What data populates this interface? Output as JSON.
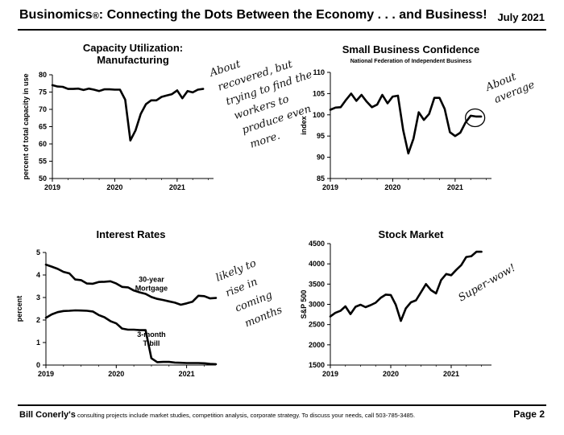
{
  "header": {
    "brand": "Businomics",
    "reg": "®",
    "subtitle": ": Connecting the Dots Between the Economy . . . and Business!",
    "date": "July 2021"
  },
  "footer": {
    "name": "Bill Conerly's",
    "text": " consulting projects include market studies, competition analysis, corporate strategy.  To discuss your needs, call 503-785-3485.",
    "page": "Page 2"
  },
  "chart_data": [
    {
      "id": "capacity",
      "type": "line",
      "title": [
        "Capacity Utilization:",
        "Manufacturing"
      ],
      "subtitle": "",
      "ylabel": "percent of total capacity in use",
      "ylim": [
        50,
        80
      ],
      "yticks": [
        50,
        55,
        60,
        65,
        70,
        75,
        80
      ],
      "xlim": [
        2019,
        2021.583
      ],
      "xticks": [
        2019,
        2020,
        2021
      ],
      "xtick_labels": [
        "2019",
        "2020",
        "2021"
      ],
      "grid": false,
      "series": [
        {
          "x": [
            2019.0,
            2019.083,
            2019.167,
            2019.25,
            2019.333,
            2019.417,
            2019.5,
            2019.583,
            2019.667,
            2019.75,
            2019.833,
            2019.917,
            2020.0,
            2020.083,
            2020.167,
            2020.25,
            2020.333,
            2020.417,
            2020.5,
            2020.583,
            2020.667,
            2020.75,
            2020.833,
            2020.917,
            2021.0,
            2021.083,
            2021.167,
            2021.25,
            2021.333,
            2021.417
          ],
          "y": [
            77.0,
            76.6,
            76.5,
            75.9,
            75.9,
            76.0,
            75.6,
            76.0,
            75.7,
            75.3,
            75.8,
            75.8,
            75.7,
            75.7,
            72.8,
            61.0,
            63.9,
            68.7,
            71.5,
            72.6,
            72.6,
            73.6,
            74.0,
            74.4,
            75.5,
            73.2,
            75.3,
            74.9,
            75.7,
            75.9
          ]
        }
      ],
      "annotation": [
        "About",
        "recovered, but",
        "trying to find the",
        "workers to",
        "produce even",
        "more."
      ]
    },
    {
      "id": "confidence",
      "type": "line",
      "title": [
        "Small Business Confidence"
      ],
      "subtitle": "National Federation of Independent Business",
      "ylabel": "index",
      "ylim": [
        85,
        110
      ],
      "yticks": [
        85,
        90,
        95,
        100,
        105,
        110
      ],
      "xlim": [
        2019,
        2021.583
      ],
      "xticks": [
        2019,
        2020,
        2021
      ],
      "xtick_labels": [
        "2019",
        "2020",
        "2021"
      ],
      "grid": false,
      "series": [
        {
          "x": [
            2019.0,
            2019.083,
            2019.167,
            2019.25,
            2019.333,
            2019.417,
            2019.5,
            2019.583,
            2019.667,
            2019.75,
            2019.833,
            2019.917,
            2020.0,
            2020.083,
            2020.167,
            2020.25,
            2020.333,
            2020.417,
            2020.5,
            2020.583,
            2020.667,
            2020.75,
            2020.833,
            2020.917,
            2021.0,
            2021.083,
            2021.167,
            2021.25,
            2021.333,
            2021.417
          ],
          "y": [
            101.2,
            101.7,
            101.8,
            103.5,
            105.0,
            103.3,
            104.7,
            103.1,
            101.8,
            102.4,
            104.7,
            102.7,
            104.3,
            104.5,
            96.4,
            90.9,
            94.4,
            100.6,
            98.8,
            100.2,
            104.0,
            104.0,
            101.4,
            95.9,
            95.0,
            95.8,
            98.2,
            99.8,
            99.6,
            99.6
          ]
        }
      ],
      "annotation": [
        "About",
        "average"
      ]
    },
    {
      "id": "rates",
      "type": "line",
      "title": [
        "Interest Rates"
      ],
      "subtitle": "",
      "ylabel": "percent",
      "ylim": [
        0,
        5
      ],
      "yticks": [
        0,
        1,
        2,
        3,
        4,
        5
      ],
      "xlim": [
        2019,
        2021.417
      ],
      "xticks": [
        2019,
        2020,
        2021
      ],
      "xtick_labels": [
        "2019",
        "2020",
        "2021"
      ],
      "grid": false,
      "series": [
        {
          "name": [
            "30-year",
            "Mortgage"
          ],
          "x": [
            2019.0,
            2019.083,
            2019.167,
            2019.25,
            2019.333,
            2019.417,
            2019.5,
            2019.583,
            2019.667,
            2019.75,
            2019.833,
            2019.917,
            2020.0,
            2020.083,
            2020.167,
            2020.25,
            2020.333,
            2020.417,
            2020.5,
            2020.583,
            2020.667,
            2020.75,
            2020.833,
            2020.917,
            2021.0,
            2021.083,
            2021.167,
            2021.25,
            2021.333,
            2021.417
          ],
          "y": [
            4.46,
            4.37,
            4.27,
            4.14,
            4.07,
            3.8,
            3.77,
            3.62,
            3.61,
            3.69,
            3.7,
            3.72,
            3.62,
            3.47,
            3.45,
            3.31,
            3.23,
            3.16,
            3.02,
            2.94,
            2.89,
            2.83,
            2.77,
            2.68,
            2.74,
            2.81,
            3.08,
            3.06,
            2.96,
            2.98
          ]
        },
        {
          "name": [
            "3-month",
            "T-bill"
          ],
          "x": [
            2019.0,
            2019.083,
            2019.167,
            2019.25,
            2019.333,
            2019.417,
            2019.5,
            2019.583,
            2019.667,
            2019.75,
            2019.833,
            2019.917,
            2020.0,
            2020.083,
            2020.167,
            2020.25,
            2020.333,
            2020.417,
            2020.5,
            2020.583,
            2020.667,
            2020.75,
            2020.833,
            2020.917,
            2021.0,
            2021.083,
            2021.167,
            2021.25,
            2021.333,
            2021.417
          ],
          "y": [
            2.1,
            2.25,
            2.35,
            2.4,
            2.41,
            2.43,
            2.42,
            2.41,
            2.38,
            2.22,
            2.12,
            1.95,
            1.85,
            1.62,
            1.57,
            1.57,
            1.55,
            1.55,
            0.3,
            0.13,
            0.14,
            0.14,
            0.11,
            0.1,
            0.09,
            0.09,
            0.09,
            0.08,
            0.05,
            0.04
          ]
        }
      ],
      "annotation": [
        "likely to",
        "rise in",
        "coming",
        "months"
      ]
    },
    {
      "id": "stocks",
      "type": "line",
      "title": [
        "Stock Market"
      ],
      "subtitle": "",
      "ylabel": "S&P 500",
      "ylim": [
        1500,
        4500
      ],
      "yticks": [
        1500,
        2000,
        2500,
        3000,
        3500,
        4000,
        4500
      ],
      "xlim": [
        2019,
        2021.667
      ],
      "xticks": [
        2019,
        2020,
        2021
      ],
      "xtick_labels": [
        "2019",
        "2020",
        "2021"
      ],
      "grid": false,
      "series": [
        {
          "x": [
            2019.0,
            2019.083,
            2019.167,
            2019.25,
            2019.333,
            2019.417,
            2019.5,
            2019.583,
            2019.667,
            2019.75,
            2019.833,
            2019.917,
            2020.0,
            2020.083,
            2020.167,
            2020.25,
            2020.333,
            2020.417,
            2020.5,
            2020.583,
            2020.667,
            2020.75,
            2020.833,
            2020.917,
            2021.0,
            2021.083,
            2021.167,
            2021.25,
            2021.333,
            2021.417,
            2021.5
          ],
          "y": [
            2700,
            2790,
            2840,
            2950,
            2760,
            2940,
            2990,
            2930,
            2980,
            3040,
            3160,
            3240,
            3230,
            2990,
            2590,
            2900,
            3050,
            3100,
            3300,
            3500,
            3350,
            3270,
            3600,
            3750,
            3720,
            3850,
            3970,
            4170,
            4190,
            4300,
            4300
          ]
        }
      ],
      "annotation": [
        "Super-wow!"
      ]
    }
  ]
}
